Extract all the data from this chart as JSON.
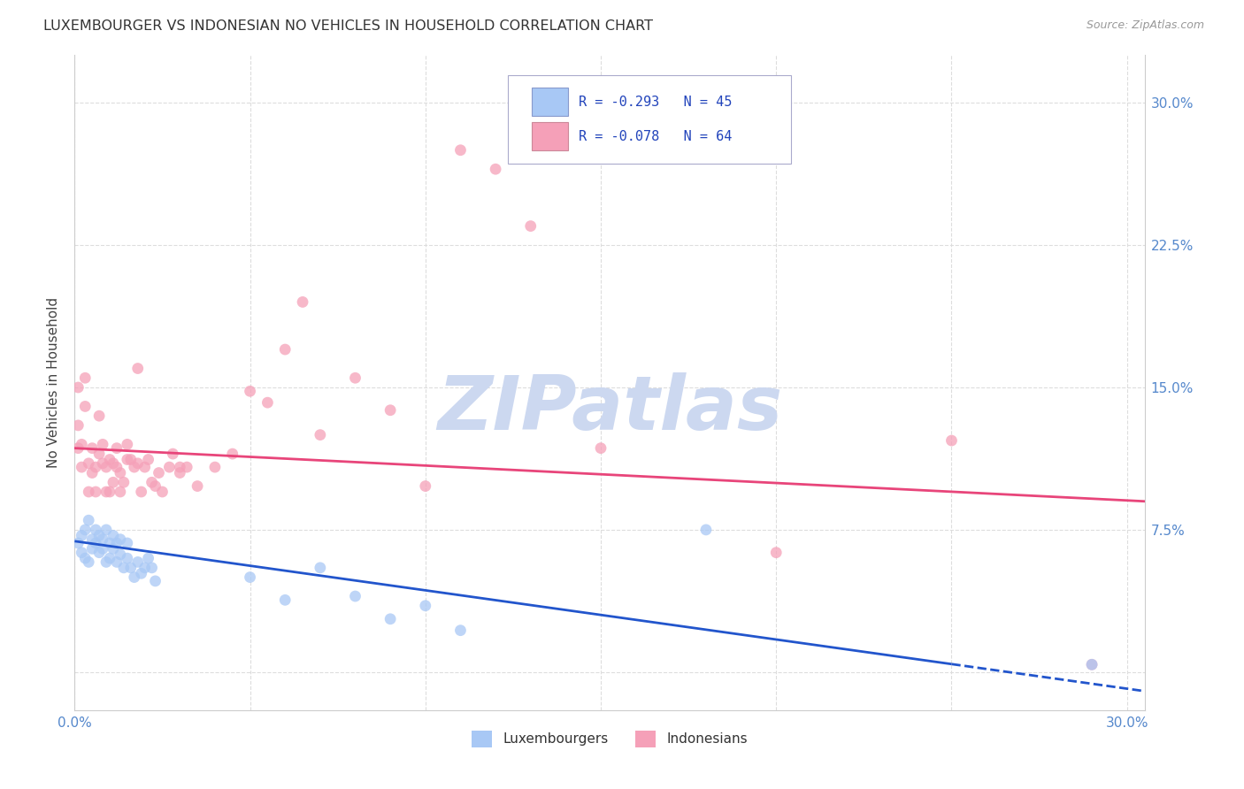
{
  "title": "LUXEMBOURGER VS INDONESIAN NO VEHICLES IN HOUSEHOLD CORRELATION CHART",
  "source": "Source: ZipAtlas.com",
  "ylabel": "No Vehicles in Household",
  "xlim": [
    0.0,
    0.305
  ],
  "ylim": [
    -0.02,
    0.325
  ],
  "yticks": [
    0.0,
    0.075,
    0.15,
    0.225,
    0.3
  ],
  "ytick_labels_right": [
    "",
    "7.5%",
    "15.0%",
    "22.5%",
    "30.0%"
  ],
  "xticks": [
    0.0,
    0.05,
    0.1,
    0.15,
    0.2,
    0.25,
    0.3
  ],
  "xtick_labels": [
    "0.0%",
    "",
    "",
    "",
    "",
    "",
    "30.0%"
  ],
  "blue_color": "#a8c8f5",
  "pink_color": "#f5a0b8",
  "line_blue": "#2255cc",
  "line_pink": "#e8457a",
  "axis_tick_color": "#5588cc",
  "title_color": "#333333",
  "grid_color": "#dddddd",
  "watermark_text": "ZIPatlas",
  "legend_R_blue": "R = -0.293",
  "legend_N_blue": "N = 45",
  "legend_R_pink": "R = -0.078",
  "legend_N_pink": "N = 64",
  "blue_points_x": [
    0.001,
    0.002,
    0.002,
    0.003,
    0.003,
    0.004,
    0.004,
    0.005,
    0.005,
    0.006,
    0.006,
    0.007,
    0.007,
    0.008,
    0.008,
    0.009,
    0.009,
    0.01,
    0.01,
    0.011,
    0.011,
    0.012,
    0.012,
    0.013,
    0.013,
    0.014,
    0.015,
    0.015,
    0.016,
    0.017,
    0.018,
    0.019,
    0.02,
    0.021,
    0.022,
    0.023,
    0.05,
    0.06,
    0.07,
    0.08,
    0.09,
    0.1,
    0.11,
    0.18,
    0.29
  ],
  "blue_points_y": [
    0.068,
    0.063,
    0.072,
    0.06,
    0.075,
    0.058,
    0.08,
    0.065,
    0.07,
    0.075,
    0.068,
    0.072,
    0.063,
    0.065,
    0.07,
    0.058,
    0.075,
    0.068,
    0.06,
    0.065,
    0.072,
    0.058,
    0.068,
    0.062,
    0.07,
    0.055,
    0.06,
    0.068,
    0.055,
    0.05,
    0.058,
    0.052,
    0.055,
    0.06,
    0.055,
    0.048,
    0.05,
    0.038,
    0.055,
    0.04,
    0.028,
    0.035,
    0.022,
    0.075,
    0.004
  ],
  "pink_points_x": [
    0.001,
    0.001,
    0.002,
    0.002,
    0.003,
    0.003,
    0.004,
    0.004,
    0.005,
    0.005,
    0.006,
    0.006,
    0.007,
    0.007,
    0.008,
    0.008,
    0.009,
    0.009,
    0.01,
    0.01,
    0.011,
    0.011,
    0.012,
    0.012,
    0.013,
    0.013,
    0.014,
    0.015,
    0.015,
    0.016,
    0.017,
    0.018,
    0.018,
    0.019,
    0.02,
    0.021,
    0.022,
    0.023,
    0.024,
    0.025,
    0.03,
    0.035,
    0.04,
    0.045,
    0.05,
    0.055,
    0.06,
    0.065,
    0.07,
    0.08,
    0.09,
    0.1,
    0.11,
    0.12,
    0.13,
    0.15,
    0.2,
    0.25,
    0.027,
    0.028,
    0.03,
    0.032,
    0.29,
    0.001
  ],
  "pink_points_y": [
    0.13,
    0.118,
    0.12,
    0.108,
    0.14,
    0.155,
    0.11,
    0.095,
    0.105,
    0.118,
    0.095,
    0.108,
    0.135,
    0.115,
    0.11,
    0.12,
    0.095,
    0.108,
    0.112,
    0.095,
    0.1,
    0.11,
    0.108,
    0.118,
    0.095,
    0.105,
    0.1,
    0.112,
    0.12,
    0.112,
    0.108,
    0.16,
    0.11,
    0.095,
    0.108,
    0.112,
    0.1,
    0.098,
    0.105,
    0.095,
    0.105,
    0.098,
    0.108,
    0.115,
    0.148,
    0.142,
    0.17,
    0.195,
    0.125,
    0.155,
    0.138,
    0.098,
    0.275,
    0.265,
    0.235,
    0.118,
    0.063,
    0.122,
    0.108,
    0.115,
    0.108,
    0.108,
    0.004,
    0.15
  ],
  "marker_size": 85,
  "trend_blue_x0": 0.0,
  "trend_blue_y0": 0.069,
  "trend_blue_x1": 0.305,
  "trend_blue_y1": -0.01,
  "trend_blue_dash_start": 0.25,
  "trend_pink_x0": 0.0,
  "trend_pink_y0": 0.118,
  "trend_pink_x1": 0.305,
  "trend_pink_y1": 0.09
}
